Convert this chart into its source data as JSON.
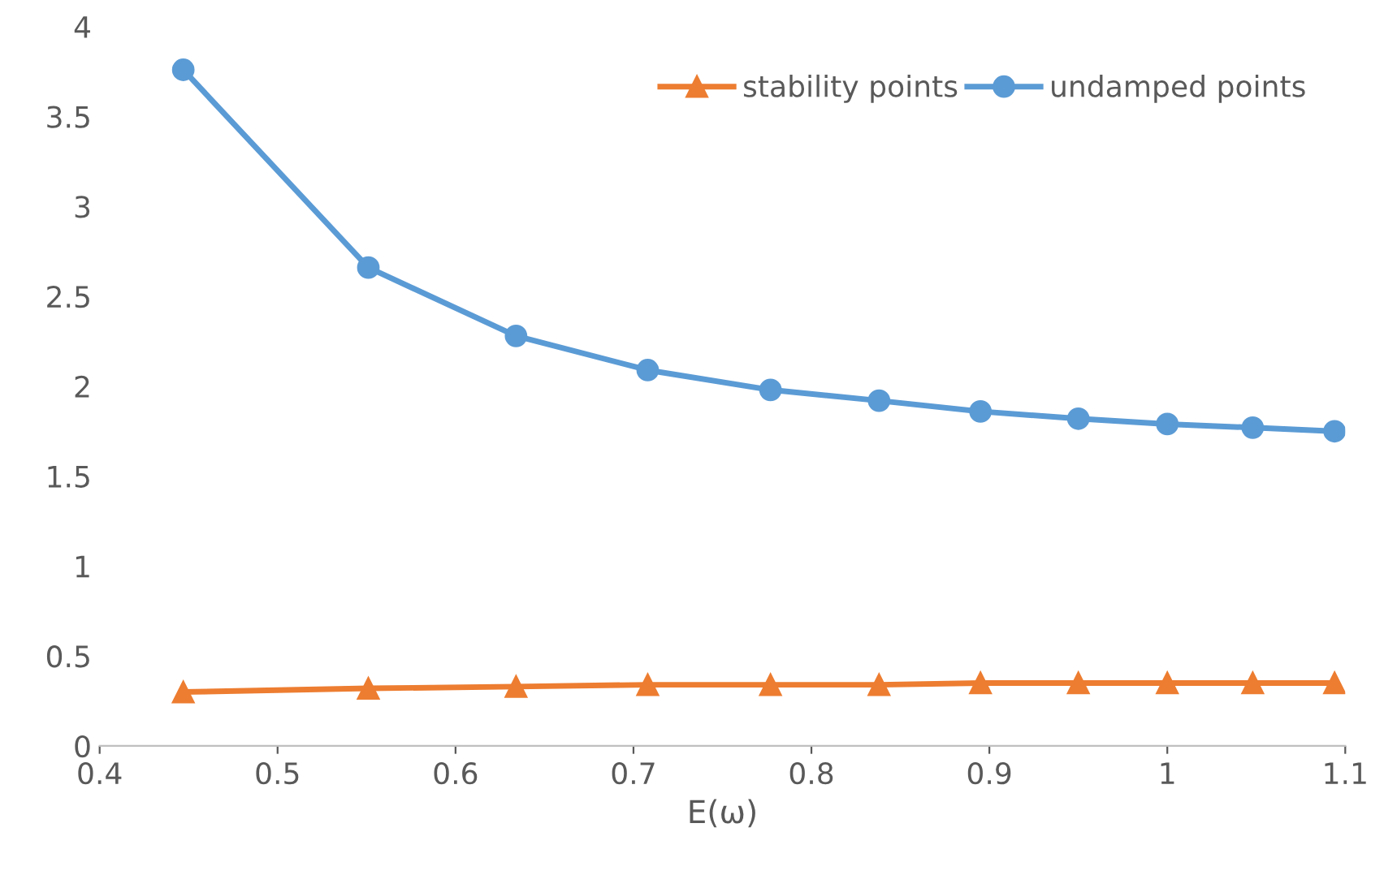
{
  "chart_data": {
    "type": "line",
    "xlabel": "E(ω)",
    "x": [
      0.447,
      0.551,
      0.634,
      0.708,
      0.777,
      0.838,
      0.895,
      0.95,
      1.0,
      1.048,
      1.094
    ],
    "series": [
      {
        "name": "stability points",
        "color": "#ed7d31",
        "marker": "triangle",
        "values": [
          0.3,
          0.32,
          0.33,
          0.34,
          0.34,
          0.34,
          0.35,
          0.35,
          0.35,
          0.35,
          0.35
        ]
      },
      {
        "name": "undamped points",
        "color": "#5b9bd5",
        "marker": "circle",
        "values": [
          3.76,
          2.66,
          2.28,
          2.09,
          1.98,
          1.92,
          1.86,
          1.82,
          1.79,
          1.77,
          1.75
        ]
      }
    ],
    "xlim": [
      0.4,
      1.1
    ],
    "xticks": [
      0.4,
      0.5,
      0.6,
      0.7,
      0.8,
      0.9,
      1,
      1.1
    ],
    "ylim": [
      0,
      4
    ],
    "yticks": [
      0,
      0.5,
      1,
      1.5,
      2,
      2.5,
      3,
      3.5,
      4
    ],
    "grid": false,
    "legend": "top right",
    "line_style": "solid"
  }
}
